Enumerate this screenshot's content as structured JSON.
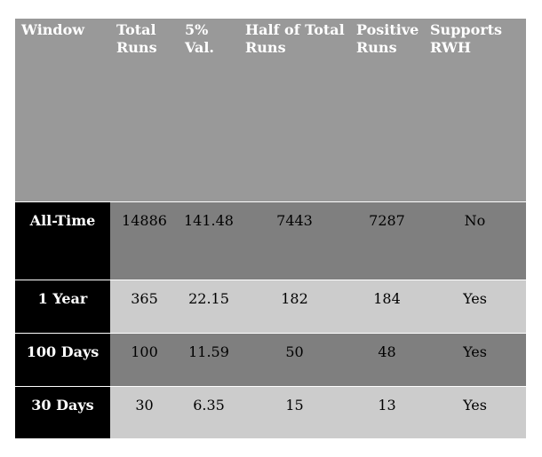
{
  "table": {
    "headers": {
      "window": "Window",
      "total_runs": "Total Runs",
      "val5": "5% Val.",
      "half": "Half of Total Runs",
      "positive": "Positive Runs",
      "supports": "Supports RWH"
    },
    "rows": [
      {
        "window": "All-Time",
        "total_runs": "14886",
        "val5": "141.48",
        "half": "7443",
        "positive": "7287",
        "supports": "No"
      },
      {
        "window": "1 Year",
        "total_runs": "365",
        "val5": "22.15",
        "half": "182",
        "positive": "184",
        "supports": "Yes"
      },
      {
        "window": "100 Days",
        "total_runs": "100",
        "val5": "11.59",
        "half": "50",
        "positive": "48",
        "supports": "Yes"
      },
      {
        "window": "30 Days",
        "total_runs": "30",
        "val5": "6.35",
        "half": "15",
        "positive": "13",
        "supports": "Yes"
      }
    ]
  },
  "colors": {
    "header_bg": "#999999",
    "window_col_bg": "#000000",
    "dark_row_bg": "#7f7f7f",
    "light_row_bg": "#cccccc"
  }
}
